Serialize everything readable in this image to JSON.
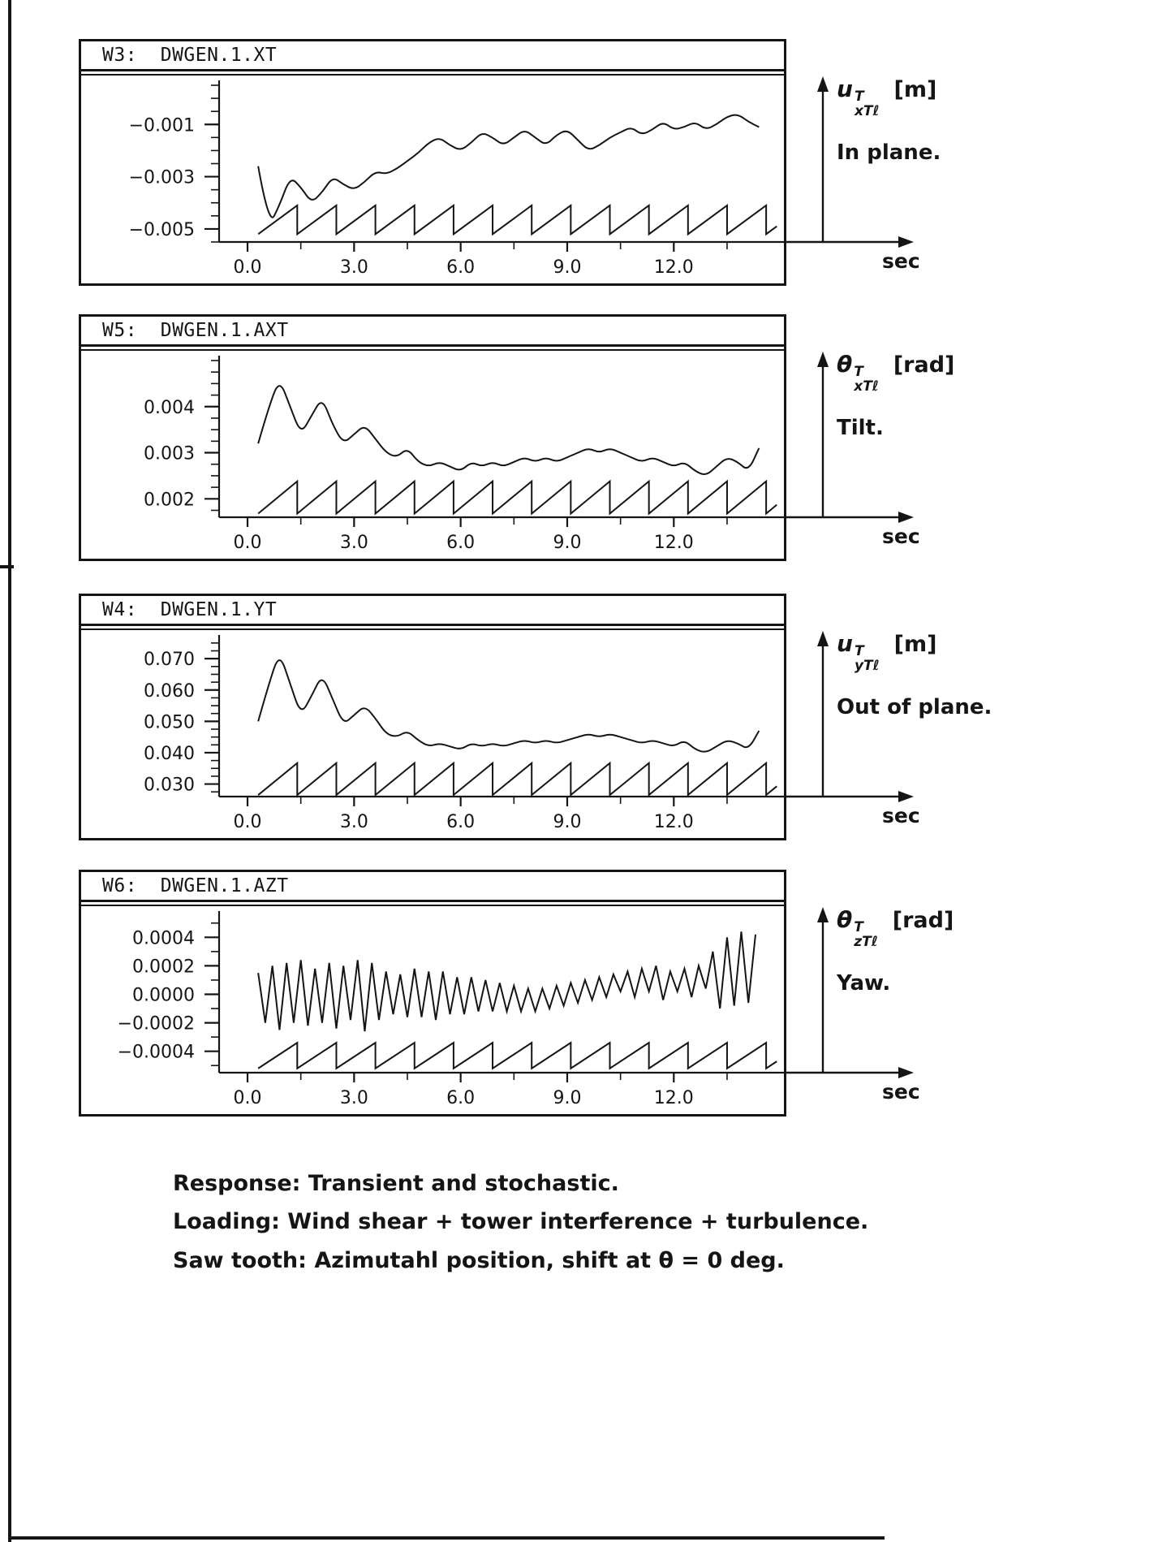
{
  "colors": {
    "ink": "#151515",
    "paper": "#ffffff"
  },
  "caption": {
    "lines": [
      "Response: Transient and stochastic.",
      "Loading: Wind shear + tower interference + turbulence.",
      "Saw tooth: Azimutahl position, shift at θ = 0 deg."
    ]
  },
  "chart_data": [
    {
      "type": "line",
      "title": "W3:  DWGEN.1.XT",
      "right_label": {
        "symbol": "u",
        "sup": "T",
        "sub": "xTℓ",
        "unit": "[m]",
        "desc": "In plane."
      },
      "x_axis": {
        "unit": "sec",
        "lim": [
          -0.8,
          15.1
        ],
        "values": [
          0,
          3,
          6,
          9,
          12
        ],
        "labels": [
          "0.0",
          "3.0",
          "6.0",
          "9.0",
          "12.0"
        ],
        "minor": [
          1.5,
          4.5,
          7.5,
          10.5,
          13.5
        ]
      },
      "y_axis": {
        "lim": [
          -0.0055,
          0.0005
        ],
        "values": [
          -0.001,
          -0.003,
          -0.005
        ],
        "labels": [
          "−0.001",
          "−0.003",
          "−0.005"
        ],
        "minor_step": 0.0005
      },
      "response": {
        "smooth": true,
        "x0": 0.3,
        "dx": 0.3,
        "y": [
          -0.0026,
          -0.0049,
          -0.0041,
          -0.003,
          -0.0034,
          -0.004,
          -0.0036,
          -0.003,
          -0.0033,
          -0.0035,
          -0.0032,
          -0.0028,
          -0.0029,
          -0.0027,
          -0.0024,
          -0.0021,
          -0.0017,
          -0.0015,
          -0.0018,
          -0.002,
          -0.0017,
          -0.0013,
          -0.0015,
          -0.0018,
          -0.0015,
          -0.0012,
          -0.0015,
          -0.0018,
          -0.0014,
          -0.0012,
          -0.0016,
          -0.002,
          -0.0018,
          -0.0015,
          -0.0013,
          -0.0011,
          -0.0014,
          -0.0012,
          -0.0009,
          -0.0012,
          -0.0011,
          -0.0009,
          -0.0012,
          -0.001,
          -0.0007,
          -0.0006,
          -0.0009,
          -0.0011
        ]
      },
      "sawtooth": {
        "t_start": 0.3,
        "period": 1.1,
        "t_end": 14.9,
        "low": -0.0052,
        "high": -0.0041
      }
    },
    {
      "type": "line",
      "title": "W5:  DWGEN.1.AXT",
      "right_label": {
        "symbol": "θ",
        "sup": "T",
        "sub": "xTℓ",
        "unit": "[rad]",
        "desc": "Tilt."
      },
      "x_axis": {
        "unit": "sec",
        "lim": [
          -0.8,
          15.1
        ],
        "values": [
          0,
          3,
          6,
          9,
          12
        ],
        "labels": [
          "0.0",
          "3.0",
          "6.0",
          "9.0",
          "12.0"
        ],
        "minor": [
          1.5,
          4.5,
          7.5,
          10.5,
          13.5
        ]
      },
      "y_axis": {
        "lim": [
          0.0016,
          0.005
        ],
        "values": [
          0.004,
          0.003,
          0.002
        ],
        "labels": [
          "0.004",
          "0.003",
          "0.002"
        ],
        "minor_step": 0.00025
      },
      "response": {
        "smooth": true,
        "x0": 0.3,
        "dx": 0.3,
        "y": [
          0.0032,
          0.004,
          0.0046,
          0.004,
          0.0034,
          0.0038,
          0.0042,
          0.0036,
          0.0032,
          0.0034,
          0.0036,
          0.0033,
          0.003,
          0.0029,
          0.0031,
          0.0028,
          0.0027,
          0.0028,
          0.0027,
          0.0026,
          0.0028,
          0.0027,
          0.0028,
          0.0027,
          0.0028,
          0.0029,
          0.0028,
          0.0029,
          0.0028,
          0.0029,
          0.003,
          0.0031,
          0.003,
          0.0031,
          0.003,
          0.0029,
          0.0028,
          0.0029,
          0.0028,
          0.0027,
          0.0028,
          0.0026,
          0.0025,
          0.0027,
          0.0029,
          0.0028,
          0.0026,
          0.0031
        ]
      },
      "sawtooth": {
        "t_start": 0.3,
        "period": 1.1,
        "t_end": 14.9,
        "low": 0.00168,
        "high": 0.00238
      }
    },
    {
      "type": "line",
      "title": "W4:  DWGEN.1.YT",
      "right_label": {
        "symbol": "u",
        "sup": "T",
        "sub": "yTℓ",
        "unit": "[m]",
        "desc": "Out of plane."
      },
      "x_axis": {
        "unit": "sec",
        "lim": [
          -0.8,
          15.1
        ],
        "values": [
          0,
          3,
          6,
          9,
          12
        ],
        "labels": [
          "0.0",
          "3.0",
          "6.0",
          "9.0",
          "12.0"
        ],
        "minor": [
          1.5,
          4.5,
          7.5,
          10.5,
          13.5
        ]
      },
      "y_axis": {
        "lim": [
          0.026,
          0.076
        ],
        "values": [
          0.07,
          0.06,
          0.05,
          0.04,
          0.03
        ],
        "labels": [
          "0.070",
          "0.060",
          "0.050",
          "0.040",
          "0.030"
        ],
        "minor_step": 0.0025
      },
      "response": {
        "smooth": true,
        "x0": 0.3,
        "dx": 0.3,
        "y": [
          0.05,
          0.062,
          0.072,
          0.062,
          0.052,
          0.058,
          0.065,
          0.057,
          0.049,
          0.052,
          0.055,
          0.051,
          0.046,
          0.045,
          0.047,
          0.044,
          0.042,
          0.043,
          0.042,
          0.041,
          0.043,
          0.042,
          0.043,
          0.042,
          0.043,
          0.044,
          0.043,
          0.044,
          0.043,
          0.044,
          0.045,
          0.046,
          0.045,
          0.046,
          0.045,
          0.044,
          0.043,
          0.044,
          0.043,
          0.042,
          0.044,
          0.041,
          0.04,
          0.042,
          0.044,
          0.043,
          0.041,
          0.047
        ]
      },
      "sawtooth": {
        "t_start": 0.3,
        "period": 1.1,
        "t_end": 14.9,
        "low": 0.0265,
        "high": 0.0367
      }
    },
    {
      "type": "line",
      "title": "W6:  DWGEN.1.AZT",
      "right_label": {
        "symbol": "θ",
        "sup": "T",
        "sub": "zTℓ",
        "unit": "[rad]",
        "desc": "Yaw."
      },
      "x_axis": {
        "unit": "sec",
        "lim": [
          -0.8,
          15.1
        ],
        "values": [
          0,
          3,
          6,
          9,
          12
        ],
        "labels": [
          "0.0",
          "3.0",
          "6.0",
          "9.0",
          "12.0"
        ],
        "minor": [
          1.5,
          4.5,
          7.5,
          10.5,
          13.5
        ]
      },
      "y_axis": {
        "lim": [
          -0.00055,
          0.00055
        ],
        "values": [
          0.0004,
          0.0002,
          0.0,
          -0.0002,
          -0.0004
        ],
        "labels": [
          "0.0004",
          "0.0002",
          "0.0000",
          "−0.0002",
          "−0.0004"
        ],
        "minor_step": 0.0001
      },
      "response": {
        "smooth": false,
        "x0": 0.3,
        "dx": 0.2,
        "y": [
          0.00015,
          -0.0002,
          0.0002,
          -0.00025,
          0.00022,
          -0.0002,
          0.00024,
          -0.00022,
          0.00018,
          -0.0002,
          0.00022,
          -0.00024,
          0.0002,
          -0.00018,
          0.00024,
          -0.00026,
          0.00022,
          -0.00018,
          0.00016,
          -0.00014,
          0.00014,
          -0.00016,
          0.00018,
          -0.00016,
          0.00016,
          -0.00018,
          0.00016,
          -0.00014,
          0.00012,
          -0.00014,
          0.00012,
          -0.00012,
          0.0001,
          -0.00012,
          8e-05,
          -0.00012,
          6e-05,
          -0.00012,
          4e-05,
          -0.00012,
          4e-05,
          -0.0001,
          6e-05,
          -8e-05,
          8e-05,
          -6e-05,
          0.0001,
          -4e-05,
          0.00012,
          -2e-05,
          0.00014,
          2e-05,
          0.00016,
          -2e-05,
          0.00018,
          2e-05,
          0.0002,
          -4e-05,
          0.00016,
          2e-05,
          0.00018,
          -2e-05,
          0.0002,
          4e-05,
          0.0003,
          -0.0001,
          0.0004,
          -8e-05,
          0.00044,
          -6e-05,
          0.00042
        ]
      },
      "sawtooth": {
        "t_start": 0.3,
        "period": 1.1,
        "t_end": 14.9,
        "low": -0.00052,
        "high": -0.00034
      }
    }
  ]
}
